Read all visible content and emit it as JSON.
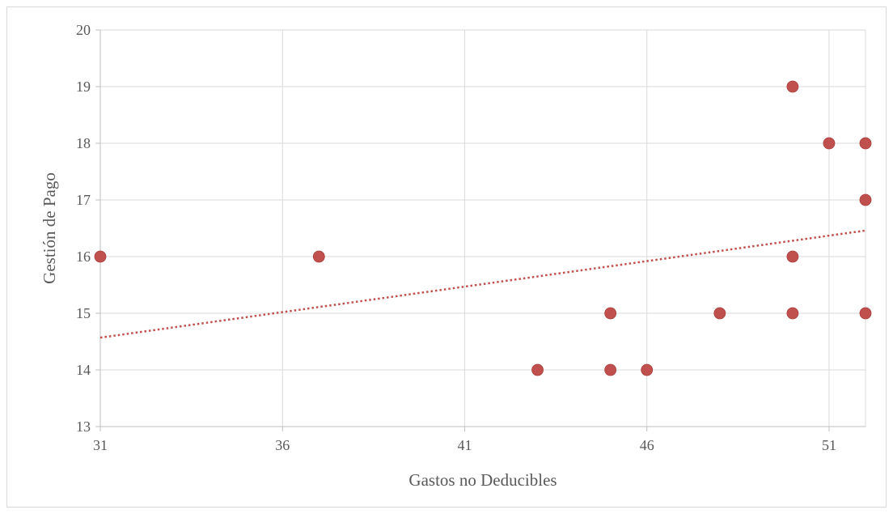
{
  "chart_data": {
    "type": "scatter",
    "xlabel": "Gastos no Deducibles",
    "ylabel": "Gestión de Pago",
    "xlim": [
      31,
      52
    ],
    "ylim": [
      13,
      20
    ],
    "x_ticks": [
      "31",
      "36",
      "41",
      "46",
      "51"
    ],
    "y_ticks": [
      "13",
      "14",
      "15",
      "16",
      "17",
      "18",
      "19",
      "20"
    ],
    "grid": true,
    "legend": "none",
    "series": [
      {
        "points": [
          {
            "x": 31,
            "y": 16
          },
          {
            "x": 37,
            "y": 16
          },
          {
            "x": 43,
            "y": 14
          },
          {
            "x": 45,
            "y": 14
          },
          {
            "x": 45,
            "y": 15
          },
          {
            "x": 46,
            "y": 14
          },
          {
            "x": 48,
            "y": 15
          },
          {
            "x": 50,
            "y": 15
          },
          {
            "x": 50,
            "y": 16
          },
          {
            "x": 50,
            "y": 19
          },
          {
            "x": 51,
            "y": 18
          },
          {
            "x": 52,
            "y": 18
          },
          {
            "x": 52,
            "y": 17
          },
          {
            "x": 52,
            "y": 15
          }
        ],
        "color": "#c0504d"
      }
    ],
    "trendline": {
      "type": "linear",
      "style": "dotted",
      "color": "#c0504d",
      "start": {
        "x": 31,
        "y": 14.57
      },
      "end": {
        "x": 52,
        "y": 16.46
      }
    }
  }
}
